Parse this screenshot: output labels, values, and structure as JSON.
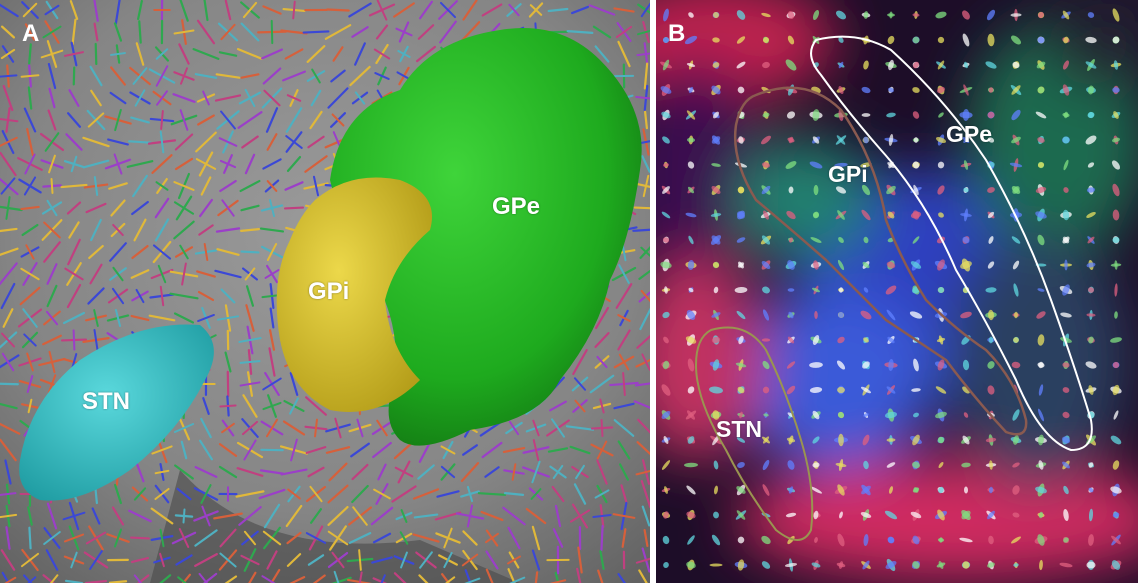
{
  "panel_a": {
    "letter": "A",
    "labels": {
      "stn": "STN",
      "gpi": "GPi",
      "gpe": "GPe"
    },
    "colors": {
      "stn": "#2fc4c8",
      "gpi": "#d9c22a",
      "gpe": "#1fb81f",
      "background": "#8a8a8a"
    }
  },
  "panel_b": {
    "letter": "B",
    "labels": {
      "stn": "STN",
      "gpi": "GPi",
      "gpe": "GPe"
    },
    "colors": {
      "stn_outline": "#9a9450",
      "gpi_outline": "#8a5a50",
      "gpe_outline": "#ffffff"
    }
  }
}
